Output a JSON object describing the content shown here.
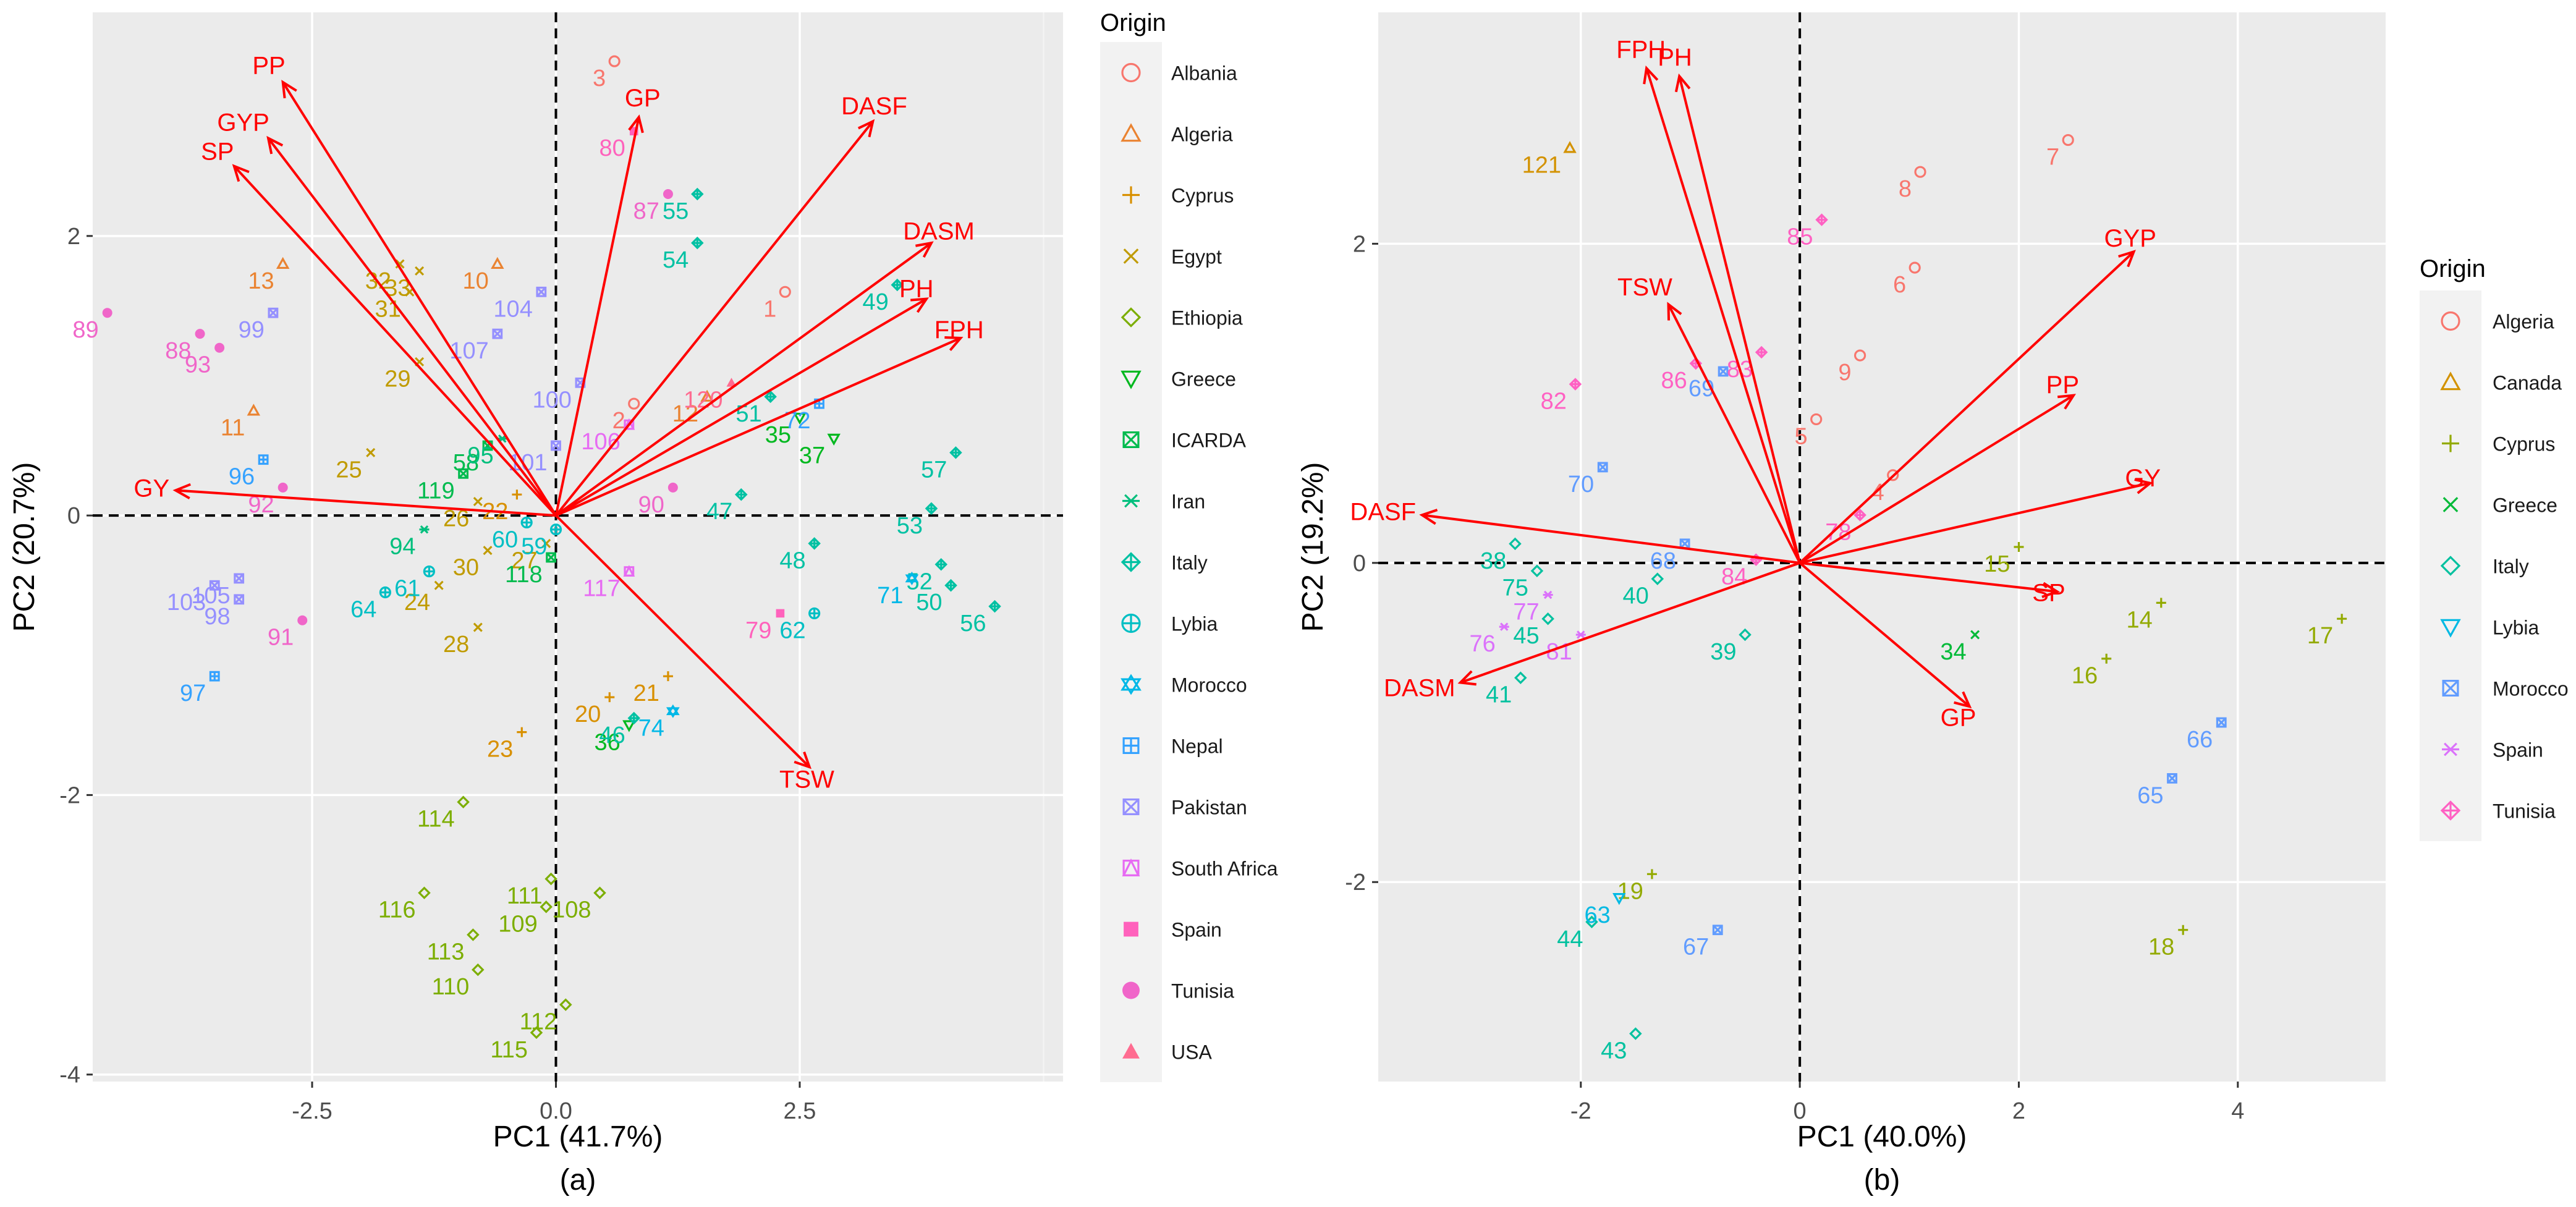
{
  "chart_data": [
    {
      "type": "scatter",
      "subtype": "pca-biplot",
      "panel_label": "(a)",
      "xlabel": "PC1 (41.7%)",
      "ylabel": "PC2 (20.7%)",
      "xlim": [
        -4.75,
        5.2
      ],
      "ylim": [
        -4.05,
        3.6
      ],
      "xticks": [
        -2.5,
        0.0,
        2.5
      ],
      "xtick_labels": [
        "-2.5",
        "0.0",
        "2.5"
      ],
      "yticks": [
        -4,
        -2,
        0,
        2
      ],
      "ytick_labels": [
        "-4",
        "-2",
        "0",
        "2"
      ],
      "legend": {
        "title": "Origin",
        "position": "right",
        "entries": [
          {
            "label": "Albania",
            "color": "#F8766D",
            "shape": "circle-open"
          },
          {
            "label": "Algeria",
            "color": "#EA8331",
            "shape": "triangle-open"
          },
          {
            "label": "Cyprus",
            "color": "#D89000",
            "shape": "plus"
          },
          {
            "label": "Egypt",
            "color": "#C09B00",
            "shape": "cross"
          },
          {
            "label": "Ethiopia",
            "color": "#7CAE00",
            "shape": "diamond-open"
          },
          {
            "label": "Greece",
            "color": "#00B81F",
            "shape": "triangle-down-open"
          },
          {
            "label": "ICARDA",
            "color": "#00BB4E",
            "shape": "square-cross"
          },
          {
            "label": "Iran",
            "color": "#00BF7D",
            "shape": "asterisk"
          },
          {
            "label": "Italy",
            "color": "#00C1A3",
            "shape": "diamond-plus"
          },
          {
            "label": "Lybia",
            "color": "#00BFC4",
            "shape": "circle-plus"
          },
          {
            "label": "Morocco",
            "color": "#00B8E7",
            "shape": "star-of-david"
          },
          {
            "label": "Nepal",
            "color": "#35A2FF",
            "shape": "square-plus"
          },
          {
            "label": "Pakistan",
            "color": "#9590FF",
            "shape": "square-x"
          },
          {
            "label": "South Africa",
            "color": "#E76BF3",
            "shape": "triangle-in-square"
          },
          {
            "label": "Spain",
            "color": "#FF62BC",
            "shape": "square-filled"
          },
          {
            "label": "Tunisia",
            "color": "#F066C9",
            "shape": "circle-filled"
          },
          {
            "label": "USA",
            "color": "#FF6C91",
            "shape": "triangle-filled"
          }
        ]
      },
      "vectors": [
        {
          "label": "PP",
          "x": -2.8,
          "y": 3.1
        },
        {
          "label": "GYP",
          "x": -2.95,
          "y": 2.7
        },
        {
          "label": "SP",
          "x": -3.3,
          "y": 2.5
        },
        {
          "label": "GY",
          "x": -3.9,
          "y": 0.18
        },
        {
          "label": "GP",
          "x": 0.85,
          "y": 2.85
        },
        {
          "label": "DASF",
          "x": 3.25,
          "y": 2.82
        },
        {
          "label": "DASM",
          "x": 3.85,
          "y": 1.95
        },
        {
          "label": "PH",
          "x": 3.8,
          "y": 1.55
        },
        {
          "label": "FPH",
          "x": 4.15,
          "y": 1.27
        },
        {
          "label": "TSW",
          "x": 2.6,
          "y": -1.8
        }
      ],
      "points": [
        {
          "id": "3",
          "origin": "Albania",
          "x": 0.6,
          "y": 3.25
        },
        {
          "id": "1",
          "origin": "Albania",
          "x": 2.35,
          "y": 1.6
        },
        {
          "id": "2",
          "origin": "Albania",
          "x": 0.8,
          "y": 0.8
        },
        {
          "id": "12",
          "origin": "Algeria",
          "x": 1.55,
          "y": 0.85
        },
        {
          "id": "13",
          "origin": "Algeria",
          "x": -2.8,
          "y": 1.8
        },
        {
          "id": "10",
          "origin": "Algeria",
          "x": -0.6,
          "y": 1.8
        },
        {
          "id": "11",
          "origin": "Algeria",
          "x": -3.1,
          "y": 0.75
        },
        {
          "id": "22",
          "origin": "Cyprus",
          "x": -0.4,
          "y": 0.15
        },
        {
          "id": "20",
          "origin": "Cyprus",
          "x": 0.55,
          "y": -1.3
        },
        {
          "id": "21",
          "origin": "Cyprus",
          "x": 1.15,
          "y": -1.15
        },
        {
          "id": "23",
          "origin": "Cyprus",
          "x": -0.35,
          "y": -1.55
        },
        {
          "id": "32",
          "origin": "Egypt",
          "x": -1.6,
          "y": 1.8
        },
        {
          "id": "33",
          "origin": "Egypt",
          "x": -1.4,
          "y": 1.75
        },
        {
          "id": "31",
          "origin": "Egypt",
          "x": -1.5,
          "y": 1.6
        },
        {
          "id": "29",
          "origin": "Egypt",
          "x": -1.4,
          "y": 1.1
        },
        {
          "id": "25",
          "origin": "Egypt",
          "x": -1.9,
          "y": 0.45
        },
        {
          "id": "26",
          "origin": "Egypt",
          "x": -0.8,
          "y": 0.1
        },
        {
          "id": "30",
          "origin": "Egypt",
          "x": -0.7,
          "y": -0.25
        },
        {
          "id": "24",
          "origin": "Egypt",
          "x": -1.2,
          "y": -0.5
        },
        {
          "id": "27",
          "origin": "Egypt",
          "x": -0.1,
          "y": -0.2
        },
        {
          "id": "28",
          "origin": "Egypt",
          "x": -0.8,
          "y": -0.8
        },
        {
          "id": "114",
          "origin": "Ethiopia",
          "x": -0.95,
          "y": -2.05
        },
        {
          "id": "111",
          "origin": "Ethiopia",
          "x": -0.05,
          "y": -2.6
        },
        {
          "id": "109",
          "origin": "Ethiopia",
          "x": -0.1,
          "y": -2.8
        },
        {
          "id": "108",
          "origin": "Ethiopia",
          "x": 0.45,
          "y": -2.7
        },
        {
          "id": "116",
          "origin": "Ethiopia",
          "x": -1.35,
          "y": -2.7
        },
        {
          "id": "113",
          "origin": "Ethiopia",
          "x": -0.85,
          "y": -3.0
        },
        {
          "id": "110",
          "origin": "Ethiopia",
          "x": -0.8,
          "y": -3.25
        },
        {
          "id": "112",
          "origin": "Ethiopia",
          "x": 0.1,
          "y": -3.5
        },
        {
          "id": "115",
          "origin": "Ethiopia",
          "x": -0.2,
          "y": -3.7
        },
        {
          "id": "35",
          "origin": "Greece",
          "x": 2.5,
          "y": 0.7
        },
        {
          "id": "37",
          "origin": "Greece",
          "x": 2.85,
          "y": 0.55
        },
        {
          "id": "36",
          "origin": "Greece",
          "x": 0.75,
          "y": -1.5
        },
        {
          "id": "119",
          "origin": "ICARDA",
          "x": -0.95,
          "y": 0.3
        },
        {
          "id": "58",
          "origin": "ICARDA",
          "x": -0.7,
          "y": 0.5
        },
        {
          "id": "118",
          "origin": "ICARDA",
          "x": -0.05,
          "y": -0.3
        },
        {
          "id": "94",
          "origin": "Iran",
          "x": -1.35,
          "y": -0.1
        },
        {
          "id": "95",
          "origin": "Iran",
          "x": -0.55,
          "y": 0.55
        },
        {
          "id": "55",
          "origin": "Italy",
          "x": 1.45,
          "y": 2.3
        },
        {
          "id": "54",
          "origin": "Italy",
          "x": 1.45,
          "y": 1.95
        },
        {
          "id": "49",
          "origin": "Italy",
          "x": 3.5,
          "y": 1.65
        },
        {
          "id": "51",
          "origin": "Italy",
          "x": 2.2,
          "y": 0.85
        },
        {
          "id": "57",
          "origin": "Italy",
          "x": 4.1,
          "y": 0.45
        },
        {
          "id": "53",
          "origin": "Italy",
          "x": 3.85,
          "y": 0.05
        },
        {
          "id": "52",
          "origin": "Italy",
          "x": 3.95,
          "y": -0.35
        },
        {
          "id": "50",
          "origin": "Italy",
          "x": 4.05,
          "y": -0.5
        },
        {
          "id": "56",
          "origin": "Italy",
          "x": 4.5,
          "y": -0.65
        },
        {
          "id": "47",
          "origin": "Italy",
          "x": 1.9,
          "y": 0.15
        },
        {
          "id": "48",
          "origin": "Italy",
          "x": 2.65,
          "y": -0.2
        },
        {
          "id": "46",
          "origin": "Italy",
          "x": 0.8,
          "y": -1.45
        },
        {
          "id": "59",
          "origin": "Lybia",
          "x": 0.0,
          "y": -0.1
        },
        {
          "id": "60",
          "origin": "Lybia",
          "x": -0.3,
          "y": -0.05
        },
        {
          "id": "64",
          "origin": "Lybia",
          "x": -1.75,
          "y": -0.55
        },
        {
          "id": "61",
          "origin": "Lybia",
          "x": -1.3,
          "y": -0.4
        },
        {
          "id": "62",
          "origin": "Lybia",
          "x": 2.65,
          "y": -0.7
        },
        {
          "id": "71",
          "origin": "Morocco",
          "x": 3.65,
          "y": -0.45
        },
        {
          "id": "74",
          "origin": "Morocco",
          "x": 1.2,
          "y": -1.4
        },
        {
          "id": "72",
          "origin": "Nepal",
          "x": 2.7,
          "y": 0.8
        },
        {
          "id": "96",
          "origin": "Nepal",
          "x": -3.0,
          "y": 0.4
        },
        {
          "id": "97",
          "origin": "Nepal",
          "x": -3.5,
          "y": -1.15
        },
        {
          "id": "99",
          "origin": "Pakistan",
          "x": -2.9,
          "y": 1.45
        },
        {
          "id": "104",
          "origin": "Pakistan",
          "x": -0.15,
          "y": 1.6
        },
        {
          "id": "107",
          "origin": "Pakistan",
          "x": -0.6,
          "y": 1.3
        },
        {
          "id": "100",
          "origin": "Pakistan",
          "x": 0.25,
          "y": 0.95
        },
        {
          "id": "101",
          "origin": "Pakistan",
          "x": 0.0,
          "y": 0.5
        },
        {
          "id": "103",
          "origin": "Pakistan",
          "x": -3.5,
          "y": -0.5
        },
        {
          "id": "105",
          "origin": "Pakistan",
          "x": -3.25,
          "y": -0.45
        },
        {
          "id": "98",
          "origin": "Pakistan",
          "x": -3.25,
          "y": -0.6
        },
        {
          "id": "106",
          "origin": "South Africa",
          "x": 0.75,
          "y": 0.65
        },
        {
          "id": "117",
          "origin": "South Africa",
          "x": 0.75,
          "y": -0.4
        },
        {
          "id": "80",
          "origin": "Spain",
          "x": 0.8,
          "y": 2.75
        },
        {
          "id": "79",
          "origin": "Spain",
          "x": 2.3,
          "y": -0.7
        },
        {
          "id": "87",
          "origin": "Tunisia",
          "x": 1.15,
          "y": 2.3
        },
        {
          "id": "89",
          "origin": "Tunisia",
          "x": -4.6,
          "y": 1.45
        },
        {
          "id": "88",
          "origin": "Tunisia",
          "x": -3.65,
          "y": 1.3
        },
        {
          "id": "93",
          "origin": "Tunisia",
          "x": -3.45,
          "y": 1.2
        },
        {
          "id": "92",
          "origin": "Tunisia",
          "x": -2.8,
          "y": 0.2
        },
        {
          "id": "91",
          "origin": "Tunisia",
          "x": -2.6,
          "y": -0.75
        },
        {
          "id": "90",
          "origin": "Tunisia",
          "x": 1.2,
          "y": 0.2
        },
        {
          "id": "120",
          "origin": "USA",
          "x": 1.8,
          "y": 0.95
        }
      ]
    },
    {
      "type": "scatter",
      "subtype": "pca-biplot",
      "panel_label": "(b)",
      "xlabel": "PC1 (40.0%)",
      "ylabel": "PC2 (19.2%)",
      "xlim": [
        -3.85,
        5.35
      ],
      "ylim": [
        -3.25,
        3.45
      ],
      "xticks": [
        -2,
        0,
        2,
        4
      ],
      "xtick_labels": [
        "-2",
        "0",
        "2",
        "4"
      ],
      "yticks": [
        -2,
        0,
        2
      ],
      "ytick_labels": [
        "-2",
        "0",
        "2"
      ],
      "legend": {
        "title": "Origin",
        "position": "right",
        "entries": [
          {
            "label": "Algeria",
            "color": "#F8766D",
            "shape": "circle-open"
          },
          {
            "label": "Canada",
            "color": "#D39200",
            "shape": "triangle-open"
          },
          {
            "label": "Cyprus",
            "color": "#93AA00",
            "shape": "plus"
          },
          {
            "label": "Greece",
            "color": "#00BA38",
            "shape": "cross"
          },
          {
            "label": "Italy",
            "color": "#00C19F",
            "shape": "diamond-open"
          },
          {
            "label": "Lybia",
            "color": "#00B9E3",
            "shape": "triangle-down-open"
          },
          {
            "label": "Morocco",
            "color": "#619CFF",
            "shape": "square-x"
          },
          {
            "label": "Spain",
            "color": "#DB72FB",
            "shape": "asterisk"
          },
          {
            "label": "Tunisia",
            "color": "#FF61C3",
            "shape": "diamond-plus"
          }
        ]
      },
      "vectors": [
        {
          "label": "FPH",
          "x": -1.4,
          "y": 3.1
        },
        {
          "label": "PH",
          "x": -1.1,
          "y": 3.05
        },
        {
          "label": "TSW",
          "x": -1.2,
          "y": 1.62
        },
        {
          "label": "DASF",
          "x": -3.45,
          "y": 0.3
        },
        {
          "label": "DASM",
          "x": -3.1,
          "y": -0.75
        },
        {
          "label": "GYP",
          "x": 3.05,
          "y": 1.95
        },
        {
          "label": "PP",
          "x": 2.5,
          "y": 1.05
        },
        {
          "label": "GY",
          "x": 3.2,
          "y": 0.5
        },
        {
          "label": "SP",
          "x": 2.35,
          "y": -0.18
        },
        {
          "label": "GP",
          "x": 1.55,
          "y": -0.9
        }
      ],
      "points": [
        {
          "id": "7",
          "origin": "Algeria",
          "x": 2.45,
          "y": 2.65
        },
        {
          "id": "8",
          "origin": "Algeria",
          "x": 1.1,
          "y": 2.45
        },
        {
          "id": "6",
          "origin": "Algeria",
          "x": 1.05,
          "y": 1.85
        },
        {
          "id": "9",
          "origin": "Algeria",
          "x": 0.55,
          "y": 1.3
        },
        {
          "id": "5",
          "origin": "Algeria",
          "x": 0.15,
          "y": 0.9
        },
        {
          "id": "4",
          "origin": "Algeria",
          "x": 0.85,
          "y": 0.55
        },
        {
          "id": "121",
          "origin": "Canada",
          "x": -2.1,
          "y": 2.6
        },
        {
          "id": "15",
          "origin": "Cyprus",
          "x": 2.0,
          "y": 0.1
        },
        {
          "id": "14",
          "origin": "Cyprus",
          "x": 3.3,
          "y": -0.25
        },
        {
          "id": "16",
          "origin": "Cyprus",
          "x": 2.8,
          "y": -0.6
        },
        {
          "id": "17",
          "origin": "Cyprus",
          "x": 4.95,
          "y": -0.35
        },
        {
          "id": "19",
          "origin": "Cyprus",
          "x": -1.35,
          "y": -1.95
        },
        {
          "id": "18",
          "origin": "Cyprus",
          "x": 3.5,
          "y": -2.3
        },
        {
          "id": "34",
          "origin": "Greece",
          "x": 1.6,
          "y": -0.45
        },
        {
          "id": "38",
          "origin": "Italy",
          "x": -2.6,
          "y": 0.12
        },
        {
          "id": "75",
          "origin": "Italy",
          "x": -2.4,
          "y": -0.05
        },
        {
          "id": "40",
          "origin": "Italy",
          "x": -1.3,
          "y": -0.1
        },
        {
          "id": "45",
          "origin": "Italy",
          "x": -2.3,
          "y": -0.35
        },
        {
          "id": "39",
          "origin": "Italy",
          "x": -0.5,
          "y": -0.45
        },
        {
          "id": "41",
          "origin": "Italy",
          "x": -2.55,
          "y": -0.72
        },
        {
          "id": "44",
          "origin": "Italy",
          "x": -1.9,
          "y": -2.25
        },
        {
          "id": "43",
          "origin": "Italy",
          "x": -1.5,
          "y": -2.95
        },
        {
          "id": "63",
          "origin": "Lybia",
          "x": -1.65,
          "y": -2.1
        },
        {
          "id": "70",
          "origin": "Morocco",
          "x": -1.8,
          "y": 0.6
        },
        {
          "id": "68",
          "origin": "Morocco",
          "x": -1.05,
          "y": 0.12
        },
        {
          "id": "69",
          "origin": "Morocco",
          "x": -0.7,
          "y": 1.2
        },
        {
          "id": "67",
          "origin": "Morocco",
          "x": -0.75,
          "y": -2.3
        },
        {
          "id": "65",
          "origin": "Morocco",
          "x": 3.4,
          "y": -1.35
        },
        {
          "id": "66",
          "origin": "Morocco",
          "x": 3.85,
          "y": -1.0
        },
        {
          "id": "76",
          "origin": "Spain",
          "x": -2.7,
          "y": -0.4
        },
        {
          "id": "77",
          "origin": "Spain",
          "x": -2.3,
          "y": -0.2
        },
        {
          "id": "81",
          "origin": "Spain",
          "x": -2.0,
          "y": -0.45
        },
        {
          "id": "85",
          "origin": "Tunisia",
          "x": 0.2,
          "y": 2.15
        },
        {
          "id": "82",
          "origin": "Tunisia",
          "x": -2.05,
          "y": 1.12
        },
        {
          "id": "86",
          "origin": "Tunisia",
          "x": -0.95,
          "y": 1.25
        },
        {
          "id": "83",
          "origin": "Tunisia",
          "x": -0.35,
          "y": 1.32
        },
        {
          "id": "78",
          "origin": "Tunisia",
          "x": 0.55,
          "y": 0.3
        },
        {
          "id": "84",
          "origin": "Tunisia",
          "x": -0.4,
          "y": 0.02
        }
      ]
    }
  ]
}
